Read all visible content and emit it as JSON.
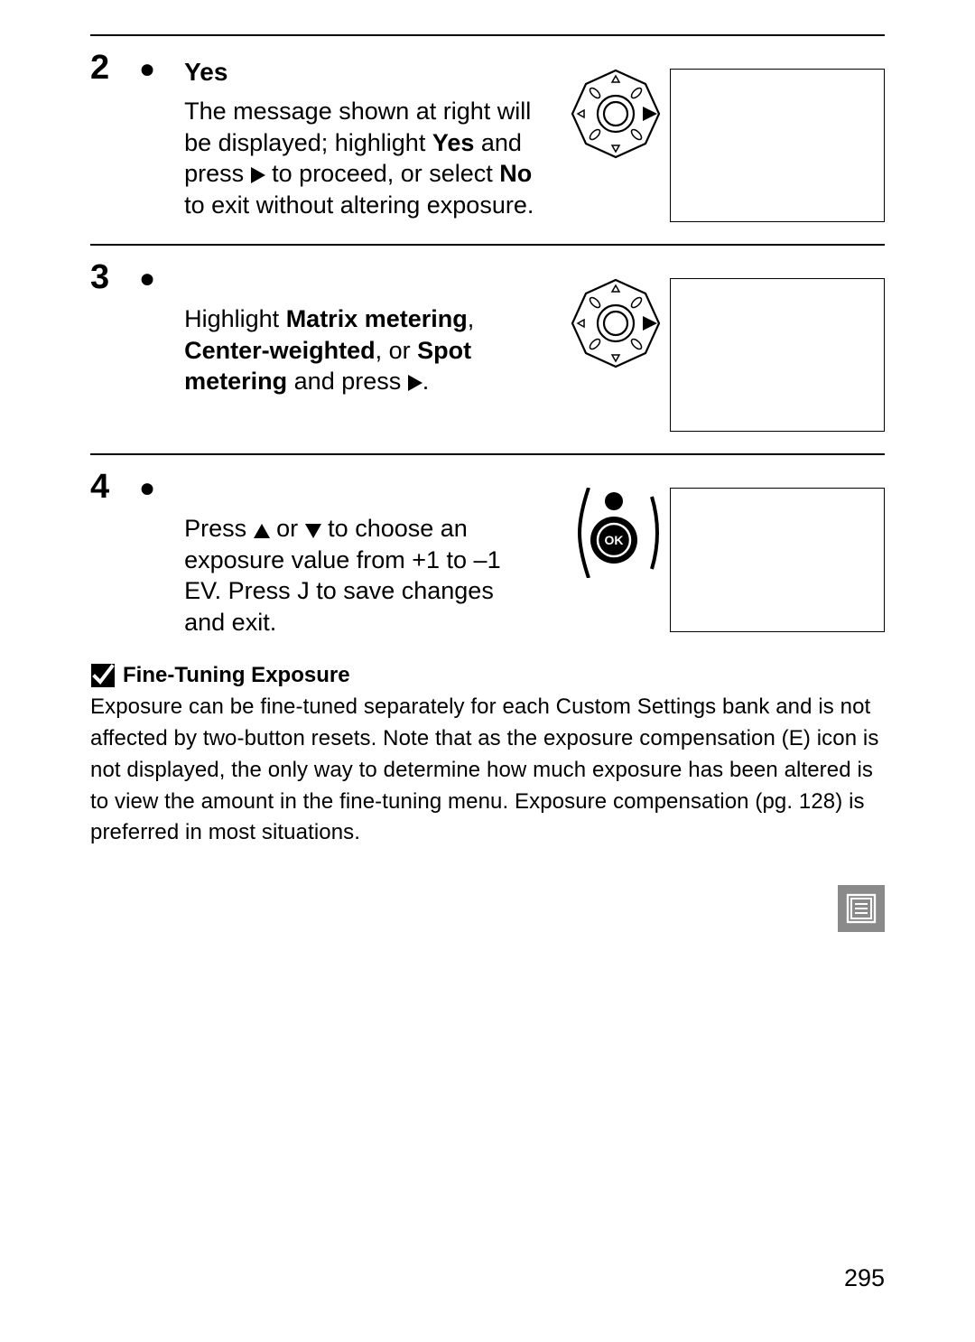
{
  "page_number": "295",
  "steps": [
    {
      "num": "2",
      "title": "Yes",
      "body_segments": [
        {
          "t": "The message shown at right will be displayed; highlight "
        },
        {
          "t": "Yes",
          "bold": true
        },
        {
          "t": " and press "
        },
        {
          "glyph": "right"
        },
        {
          "t": " to proceed, or select "
        },
        {
          "t": "No",
          "bold": true
        },
        {
          "t": " to exit without altering exposure."
        }
      ],
      "has_dpad": true,
      "screen_h_class": "h1"
    },
    {
      "num": "3",
      "title": "",
      "body_segments": [
        {
          "t": "Highlight "
        },
        {
          "t": "Matrix metering",
          "bold": true
        },
        {
          "t": ", "
        },
        {
          "t": "Center-weighted",
          "bold": true
        },
        {
          "t": ", or "
        },
        {
          "t": "Spot metering",
          "bold": true
        },
        {
          "t": " and press "
        },
        {
          "glyph": "right"
        },
        {
          "t": "."
        }
      ],
      "has_dpad": true,
      "screen_h_class": "h1"
    },
    {
      "num": "4",
      "title": "",
      "body_segments": [
        {
          "t": "Press "
        },
        {
          "glyph": "up"
        },
        {
          "t": " or "
        },
        {
          "glyph": "down"
        },
        {
          "t": " to choose an exposure value from +1 to –1 EV.  Press "
        },
        {
          "t": "J",
          "ok": true
        },
        {
          "t": " to save changes and exit."
        }
      ],
      "has_ok": true,
      "screen_h_class": "h3"
    }
  ],
  "note": {
    "heading": "Fine-Tuning Exposure",
    "body_pre": "Exposure can be fine-tuned separately for each Custom Settings bank and is not affected by two-button resets.  Note that as the exposure compensation (",
    "body_icon_label": "E",
    "body_post": ") icon is not displayed, the only way to determine how much exposure has been altered is to view the amount in the fine-tuning menu.  Exposure compensation (pg. 128) is preferred in most situations."
  }
}
